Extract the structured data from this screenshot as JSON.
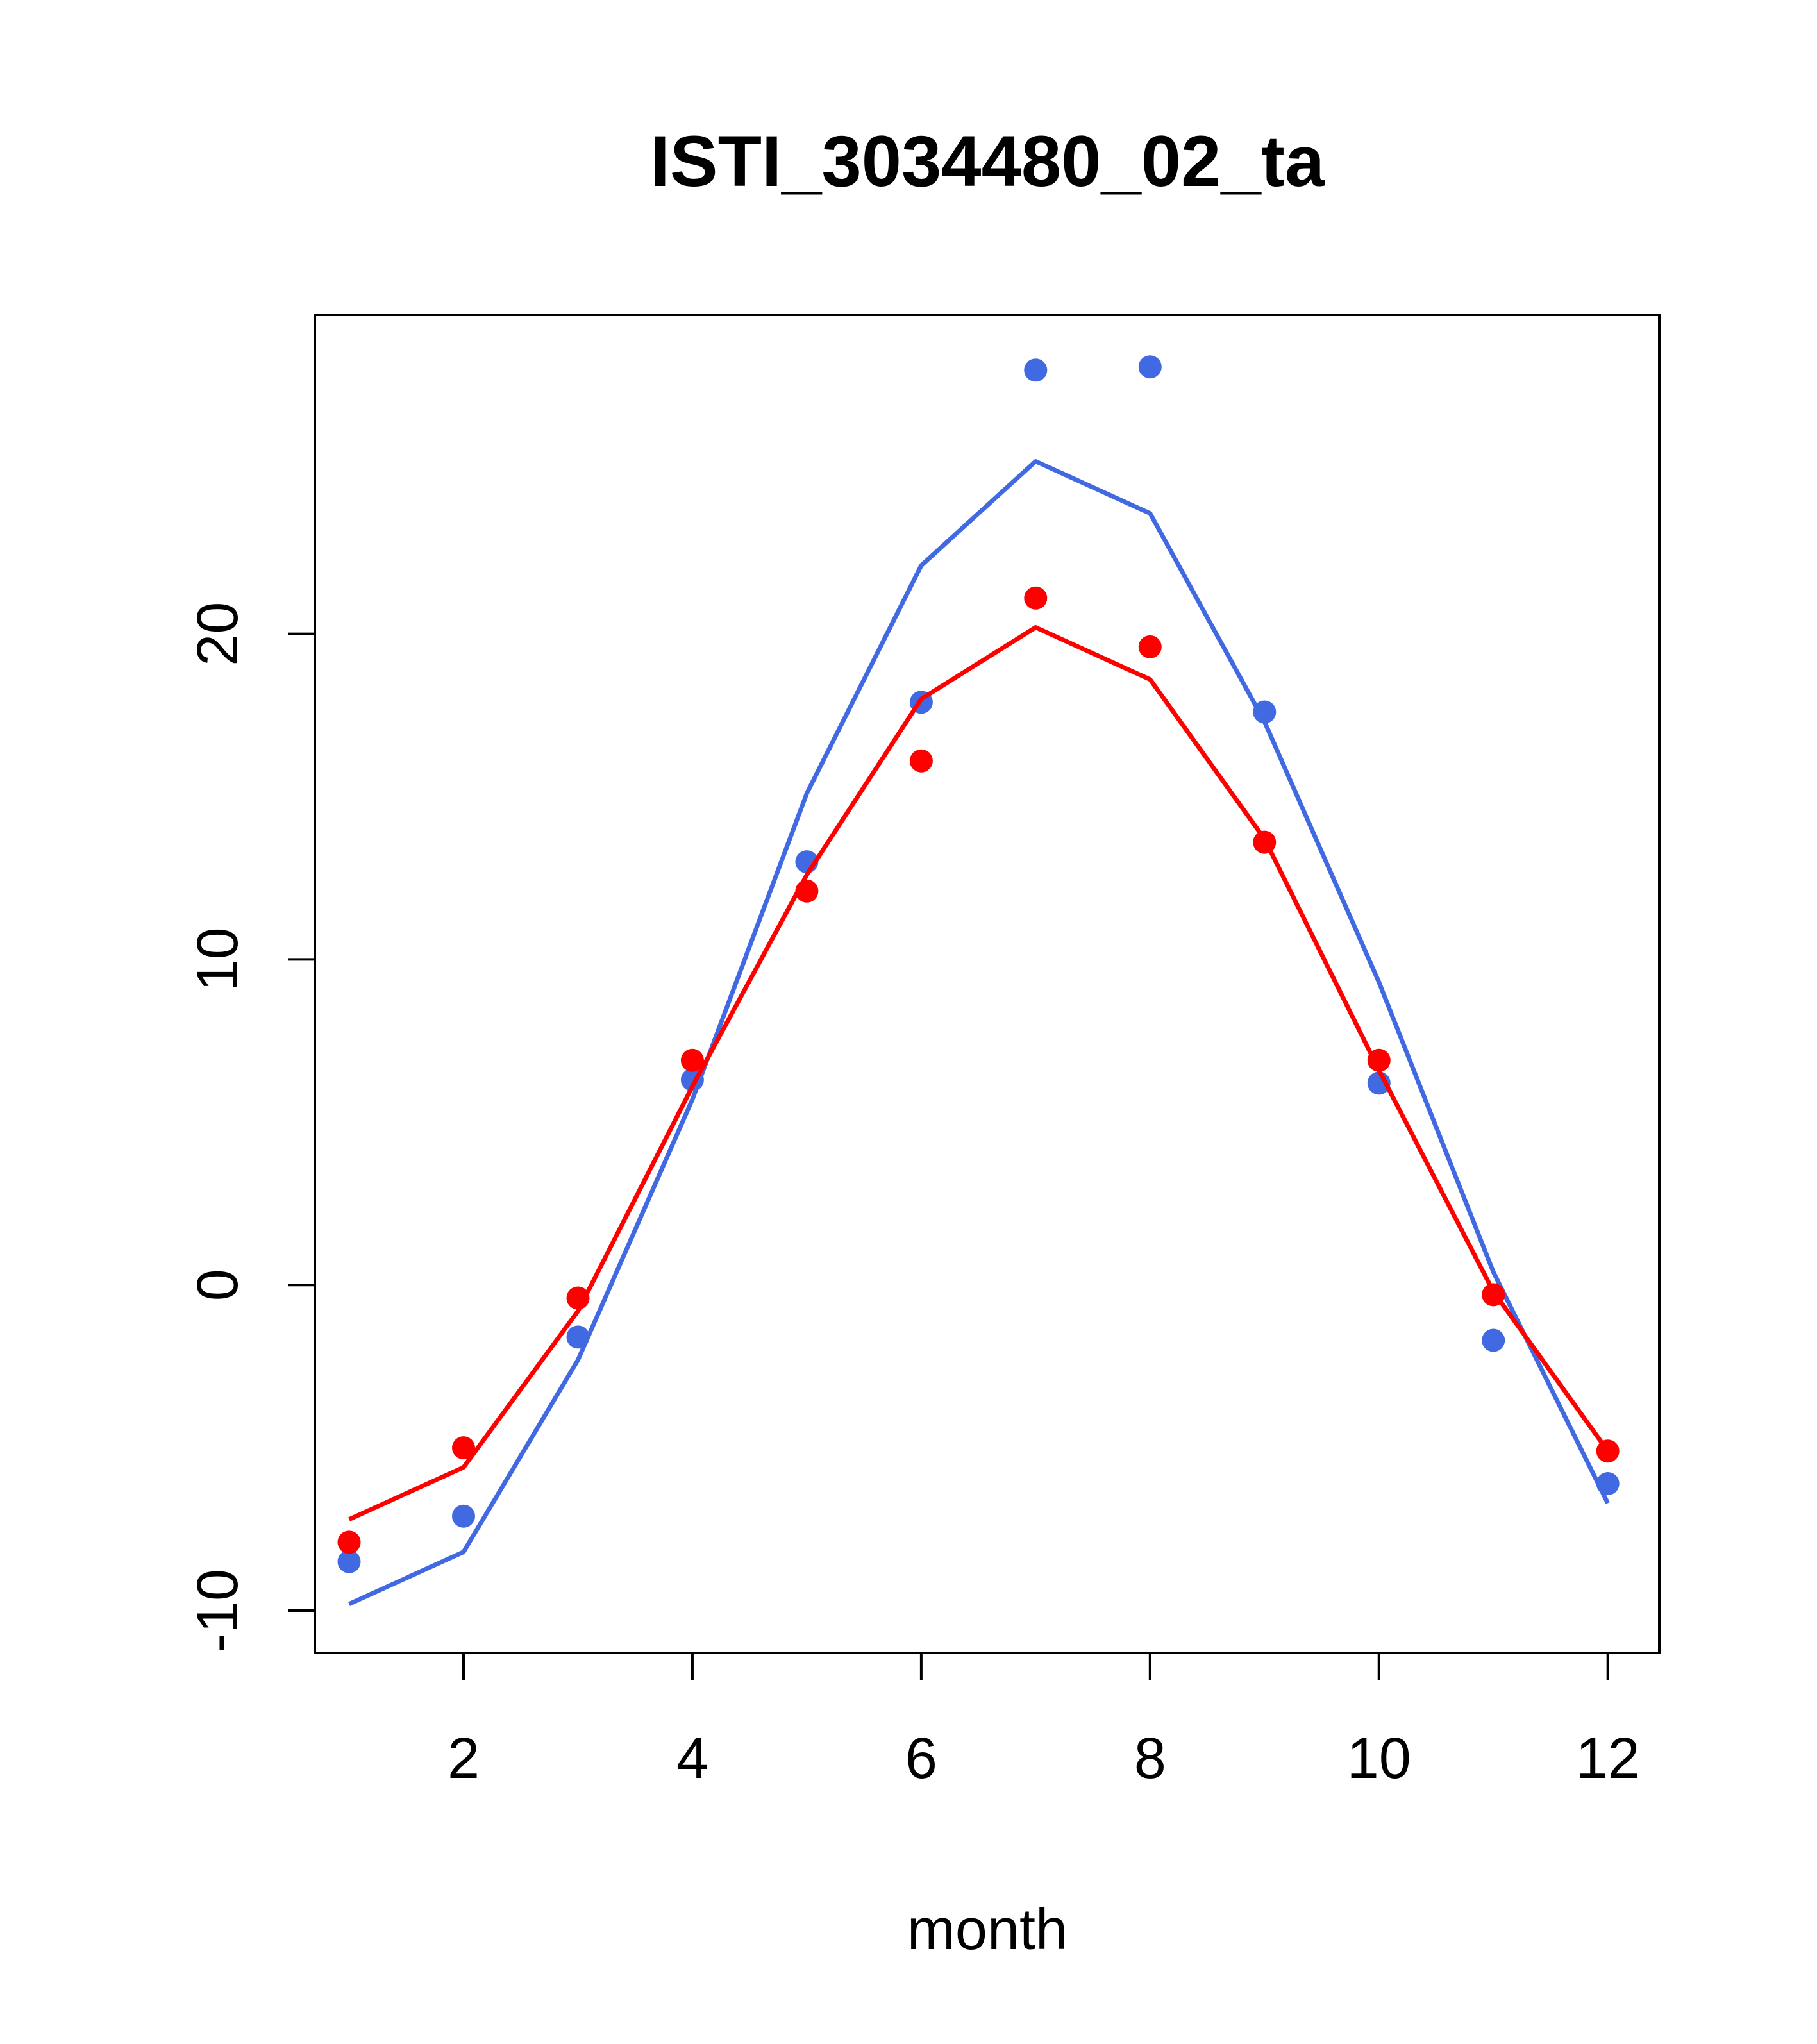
{
  "chart_data": {
    "type": "line",
    "title": "ISTI_3034480_02_ta",
    "xlabel": "month",
    "ylabel": "",
    "xlim": [
      0.7,
      12.45
    ],
    "ylim": [
      -11.3,
      29.8
    ],
    "x_ticks": [
      2,
      4,
      6,
      8,
      10,
      12
    ],
    "x_tick_labels": [
      "2",
      "4",
      "6",
      "8",
      "10",
      "12"
    ],
    "y_ticks": [
      -10,
      0,
      10,
      20
    ],
    "y_tick_labels": [
      "-10",
      "0",
      "10",
      "20"
    ],
    "grid": false,
    "legend": "none",
    "x": [
      1,
      2,
      3,
      4,
      5,
      6,
      7,
      8,
      9,
      10,
      11,
      12
    ],
    "series": [
      {
        "color": "#4169E1",
        "line": [
          -9.8,
          -8.2,
          -2.3,
          5.7,
          15.1,
          22.1,
          25.3,
          23.7,
          17.3,
          9.3,
          0.4,
          -6.7
        ],
        "points": [
          -8.5,
          -7.1,
          -1.6,
          6.3,
          13.0,
          17.9,
          28.1,
          28.2,
          17.6,
          6.2,
          -1.7,
          -6.1
        ]
      },
      {
        "color": "#FF0000",
        "line": [
          -7.2,
          -5.6,
          -0.8,
          6.1,
          12.6,
          18.0,
          20.2,
          18.6,
          13.7,
          6.6,
          -0.2,
          -5.1
        ],
        "points": [
          -7.9,
          -5.0,
          -0.4,
          6.9,
          12.1,
          16.1,
          21.1,
          19.6,
          13.6,
          6.9,
          -0.3,
          -5.1
        ]
      }
    ]
  }
}
